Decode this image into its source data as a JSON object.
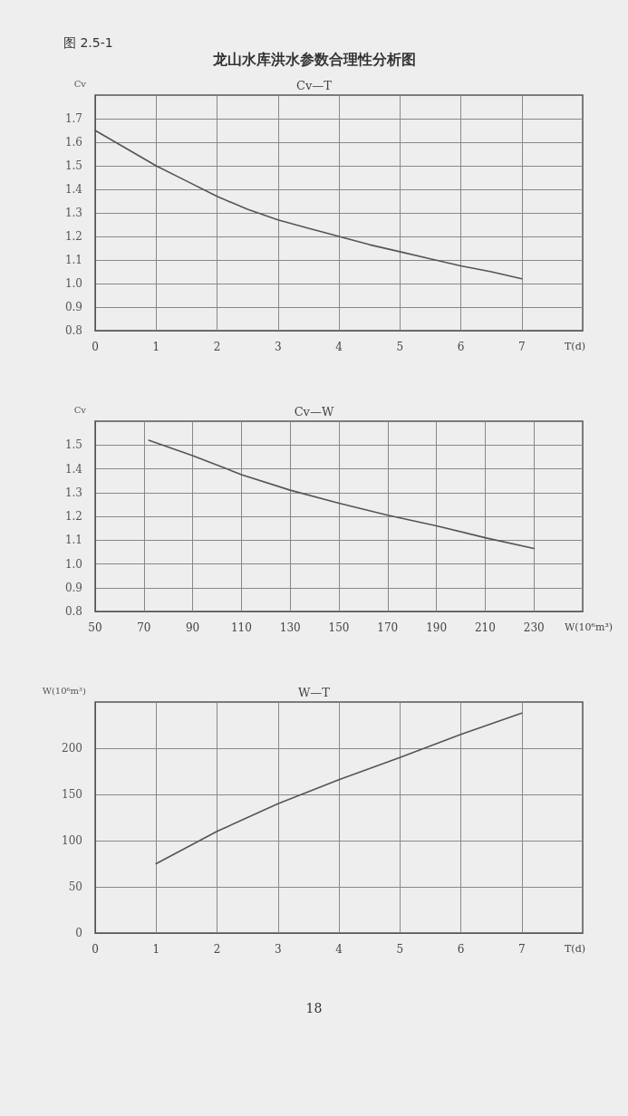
{
  "chart_data": [
    {
      "type": "line",
      "title": "龙山水库洪水参数合理性分析图",
      "subtitle": "Cv—T",
      "annotations": [
        "图 2.5-1"
      ],
      "xlabel": "T(d)",
      "ylabel": "Cv",
      "grid": true,
      "marker": "none",
      "xlim": [
        0,
        8
      ],
      "xticks": [
        0,
        1,
        2,
        3,
        4,
        5,
        6,
        7
      ],
      "ylim": [
        0.8,
        1.8
      ],
      "yticks": [
        {
          "value": 0.8,
          "label": "0.8"
        },
        {
          "value": 0.9,
          "label": "0.9"
        },
        {
          "value": 1,
          "label": "1.0"
        },
        {
          "value": 1.1,
          "label": "1.1"
        },
        {
          "value": 1.2,
          "label": "1.2"
        },
        {
          "value": 1.3,
          "label": "1.3"
        },
        {
          "value": 1.4,
          "label": "1.4"
        },
        {
          "value": 1.5,
          "label": "1.5"
        },
        {
          "value": 1.6,
          "label": "1.6"
        },
        {
          "value": 1.7,
          "label": "1.7"
        }
      ],
      "series": [
        {
          "color": "#555555",
          "x": [
            0,
            0.5,
            1,
            1.5,
            2,
            2.5,
            3,
            3.5,
            4,
            4.5,
            5,
            5.5,
            6,
            6.5,
            7
          ],
          "values": [
            1.65,
            1.575,
            1.5,
            1.435,
            1.37,
            1.315,
            1.27,
            1.235,
            1.2,
            1.165,
            1.135,
            1.105,
            1.075,
            1.05,
            1.02
          ]
        }
      ]
    },
    {
      "type": "line",
      "subtitle": "Cv—W",
      "xlabel": "W(10⁶m³)",
      "ylabel": "Cv",
      "grid": true,
      "marker": "none",
      "xlim": [
        50,
        250
      ],
      "xticks": [
        50,
        70,
        90,
        110,
        130,
        150,
        170,
        190,
        210,
        230
      ],
      "ylim": [
        0.8,
        1.6
      ],
      "yticks": [
        {
          "value": 0.8,
          "label": "0.8"
        },
        {
          "value": 0.9,
          "label": "0.9"
        },
        {
          "value": 1,
          "label": "1.0"
        },
        {
          "value": 1.1,
          "label": "1.1"
        },
        {
          "value": 1.2,
          "label": "1.2"
        },
        {
          "value": 1.3,
          "label": "1.3"
        },
        {
          "value": 1.4,
          "label": "1.4"
        },
        {
          "value": 1.5,
          "label": "1.5"
        }
      ],
      "series": [
        {
          "color": "#555555",
          "x": [
            72,
            90,
            104,
            110,
            130,
            150,
            170,
            190,
            210,
            230
          ],
          "values": [
            1.52,
            1.455,
            1.4,
            1.375,
            1.31,
            1.255,
            1.205,
            1.16,
            1.11,
            1.065
          ]
        }
      ]
    },
    {
      "type": "line",
      "subtitle": "W—T",
      "annotations": [
        "18"
      ],
      "xlabel": "T(d)",
      "ylabel": "W(10⁶m³)",
      "grid": true,
      "marker": "none",
      "xlim": [
        0,
        8
      ],
      "xticks": [
        0,
        1,
        2,
        3,
        4,
        5,
        6,
        7
      ],
      "ylim": [
        0,
        250
      ],
      "yticks": [
        0,
        50,
        100,
        150,
        200
      ],
      "series": [
        {
          "color": "#555555",
          "x": [
            1,
            2,
            3,
            4,
            5,
            6,
            7
          ],
          "values": [
            75,
            110,
            140,
            166,
            190,
            215,
            238
          ]
        }
      ]
    }
  ]
}
